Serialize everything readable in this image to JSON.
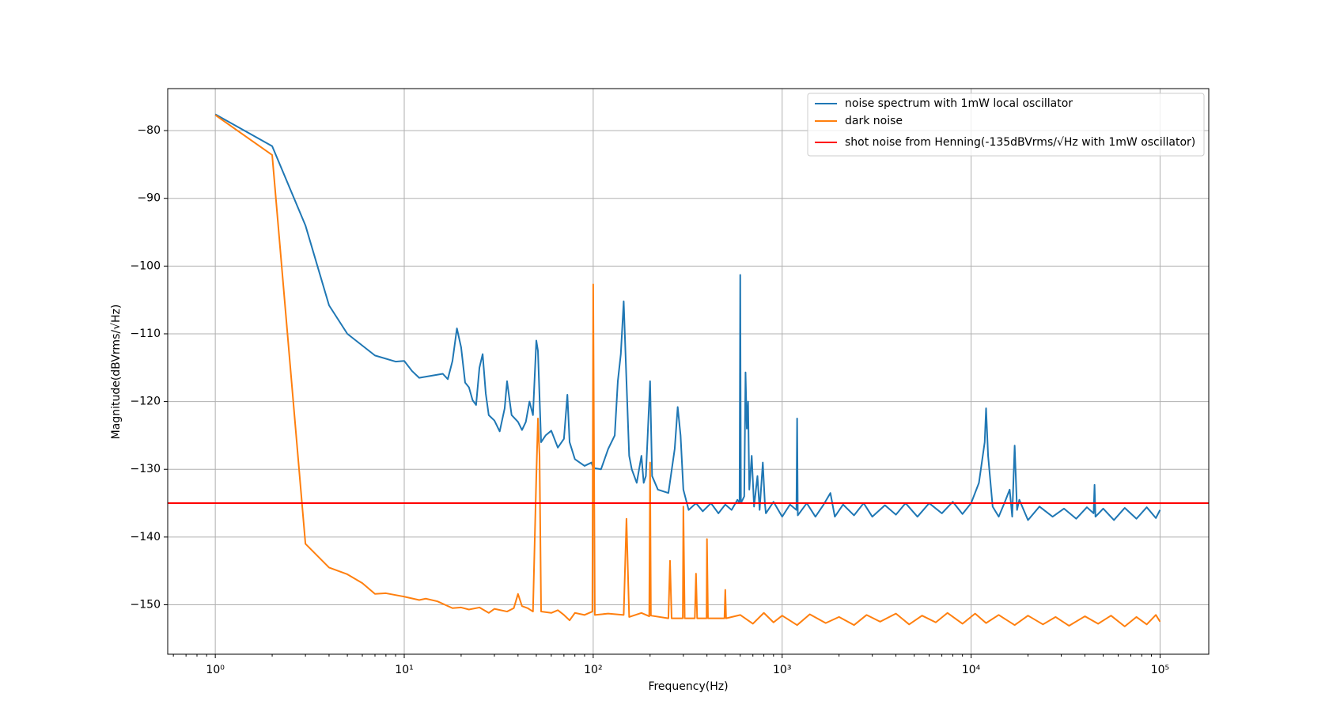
{
  "chart_data": {
    "type": "line",
    "xlabel": "Frequency(Hz)",
    "ylabel": "Magnitude(dBVrms/√Hz)",
    "xscale": "log",
    "grid": true,
    "legend": "upper right",
    "xlim": [
      0.56,
      181000
    ],
    "ylim": [
      -157.3,
      -73.8
    ],
    "xticks": [
      {
        "value": 1,
        "label": "10⁰"
      },
      {
        "value": 10,
        "label": "10¹"
      },
      {
        "value": 100,
        "label": "10²"
      },
      {
        "value": 1000,
        "label": "10³"
      },
      {
        "value": 10000,
        "label": "10⁴"
      },
      {
        "value": 100000,
        "label": "10⁵"
      }
    ],
    "xminorticks": [
      0.6,
      0.7,
      0.8,
      0.9,
      2,
      3,
      4,
      5,
      6,
      7,
      8,
      9,
      20,
      30,
      40,
      50,
      60,
      70,
      80,
      90,
      200,
      300,
      400,
      500,
      600,
      700,
      800,
      900,
      2000,
      3000,
      4000,
      5000,
      6000,
      7000,
      8000,
      9000,
      20000,
      30000,
      40000,
      50000,
      60000,
      70000,
      80000,
      90000
    ],
    "yticks": [
      {
        "value": -80,
        "label": "−80"
      },
      {
        "value": -90,
        "label": "−90"
      },
      {
        "value": -100,
        "label": "−100"
      },
      {
        "value": -110,
        "label": "−110"
      },
      {
        "value": -120,
        "label": "−120"
      },
      {
        "value": -130,
        "label": "−130"
      },
      {
        "value": -140,
        "label": "−140"
      },
      {
        "value": -150,
        "label": "−150"
      }
    ],
    "series": [
      {
        "name": "noise spectrum with 1mW local oscillator",
        "color": "#1f77b4",
        "x": [
          1,
          2,
          3,
          4,
          5,
          7,
          9,
          10,
          11,
          12,
          16,
          17,
          18,
          19,
          20,
          21,
          22,
          23,
          24,
          25,
          26,
          27,
          28,
          30,
          32,
          34,
          35,
          37,
          40,
          42,
          44,
          46,
          48,
          50,
          51,
          53,
          56,
          60,
          65,
          70,
          73,
          75,
          80,
          90,
          98,
          100,
          110,
          120,
          130,
          135,
          140,
          145,
          150,
          155,
          160,
          170,
          180,
          185,
          190,
          200,
          205,
          220,
          250,
          270,
          280,
          290,
          300,
          320,
          350,
          380,
          420,
          460,
          500,
          540,
          580,
          595,
          600,
          605,
          630,
          640,
          650,
          660,
          670,
          690,
          710,
          740,
          760,
          790,
          810,
          820,
          900,
          1000,
          1100,
          1190,
          1200,
          1210,
          1350,
          1500,
          1650,
          1800,
          1900,
          2100,
          2400,
          2700,
          3000,
          3500,
          4000,
          4500,
          5200,
          6000,
          7000,
          8000,
          9000,
          10000,
          11000,
          11800,
          12000,
          12300,
          13000,
          14000,
          15000,
          16000,
          16500,
          17000,
          17500,
          18000,
          20000,
          23000,
          27000,
          31000,
          36000,
          41000,
          44500,
          45000,
          45500,
          50000,
          57000,
          65000,
          75000,
          85000,
          95000,
          100000
        ],
        "values": [
          -77.6,
          -82.3,
          -94,
          -105.8,
          -110,
          -113.2,
          -114.1,
          -114,
          -115.5,
          -116.5,
          -115.9,
          -116.7,
          -114,
          -109.2,
          -112,
          -117.2,
          -117.9,
          -119.8,
          -120.5,
          -115,
          -113,
          -118.8,
          -122,
          -122.8,
          -124.4,
          -121,
          -117,
          -122,
          -123,
          -124.2,
          -123,
          -120,
          -122,
          -111,
          -112.5,
          -126,
          -125,
          -124.3,
          -126.8,
          -125.5,
          -119,
          -126,
          -128.5,
          -129.5,
          -129,
          -129.8,
          -130,
          -127,
          -125,
          -117,
          -113,
          -105.2,
          -117,
          -128,
          -130,
          -132,
          -128,
          -132,
          -131,
          -117,
          -131,
          -133,
          -133.5,
          -127,
          -120.8,
          -125,
          -133,
          -136,
          -135,
          -136.2,
          -135,
          -136.5,
          -135.2,
          -136,
          -134.5,
          -135,
          -101.3,
          -135,
          -134,
          -115.7,
          -124,
          -120,
          -133,
          -128,
          -135.5,
          -131,
          -136,
          -129,
          -135,
          -136.5,
          -134.8,
          -137,
          -135.2,
          -136,
          -122.5,
          -136.8,
          -135,
          -137,
          -135.3,
          -133.5,
          -137,
          -135.2,
          -136.8,
          -135,
          -137,
          -135.3,
          -136.7,
          -135,
          -137,
          -135,
          -136.5,
          -134.8,
          -136.6,
          -135,
          -132,
          -126,
          -121,
          -128,
          -135.5,
          -137,
          -135,
          -133,
          -137,
          -126.5,
          -136,
          -134.5,
          -137.5,
          -135.5,
          -137,
          -135.8,
          -137.3,
          -135.6,
          -136.5,
          -132.3,
          -137,
          -135.8,
          -137.5,
          -135.7,
          -137.3,
          -135.6,
          -137.2,
          -136
        ]
      },
      {
        "name": "dark noise",
        "color": "#ff7f0e",
        "x": [
          1,
          2,
          3,
          4,
          5,
          6,
          7,
          8,
          10,
          12,
          13,
          15,
          18,
          20,
          22,
          25,
          28,
          30,
          35,
          38,
          40,
          42,
          45,
          48,
          50,
          51,
          52,
          53,
          60,
          65,
          70,
          75,
          80,
          90,
          99,
          100,
          102,
          120,
          145,
          150,
          155,
          180,
          198,
          200,
          202,
          250,
          255,
          260,
          298,
          300,
          305,
          345,
          350,
          355,
          398,
          400,
          405,
          495,
          500,
          505,
          600,
          700,
          800,
          900,
          1000,
          1200,
          1400,
          1700,
          2000,
          2400,
          2800,
          3300,
          4000,
          4700,
          5500,
          6500,
          7500,
          9000,
          10500,
          12000,
          14000,
          17000,
          20000,
          24000,
          28000,
          33000,
          40000,
          47000,
          55000,
          65000,
          75000,
          85000,
          95000,
          100000
        ],
        "values": [
          -77.7,
          -83.6,
          -141,
          -144.5,
          -145.5,
          -146.8,
          -148.4,
          -148.3,
          -148.8,
          -149.3,
          -149.1,
          -149.5,
          -150.5,
          -150.4,
          -150.7,
          -150.4,
          -151.2,
          -150.6,
          -151,
          -150.5,
          -148.4,
          -150.2,
          -150.5,
          -151,
          -131,
          -122.5,
          -128,
          -151,
          -151.2,
          -150.8,
          -151.5,
          -152.3,
          -151.2,
          -151.5,
          -151,
          -102.7,
          -151.5,
          -151.3,
          -151.5,
          -137.3,
          -151.8,
          -151.2,
          -151.7,
          -129,
          -151.6,
          -152,
          -143.5,
          -152,
          -152,
          -135.5,
          -152,
          -152,
          -145.4,
          -152,
          -152,
          -140.3,
          -152,
          -152,
          -147.8,
          -152,
          -151.5,
          -152.8,
          -151.2,
          -152.6,
          -151.6,
          -153,
          -151.4,
          -152.7,
          -151.8,
          -153,
          -151.5,
          -152.5,
          -151.3,
          -152.9,
          -151.6,
          -152.6,
          -151.2,
          -152.8,
          -151.3,
          -152.7,
          -151.5,
          -153,
          -151.6,
          -152.9,
          -151.8,
          -153.1,
          -151.7,
          -152.8,
          -151.6,
          -153.2,
          -151.8,
          -152.9,
          -151.5,
          -152.5
        ]
      }
    ],
    "hline": {
      "name": "shot noise from Henning(-135dBVrms/√Hz with 1mW oscillator)",
      "color": "#ff0000",
      "value": -135
    }
  }
}
